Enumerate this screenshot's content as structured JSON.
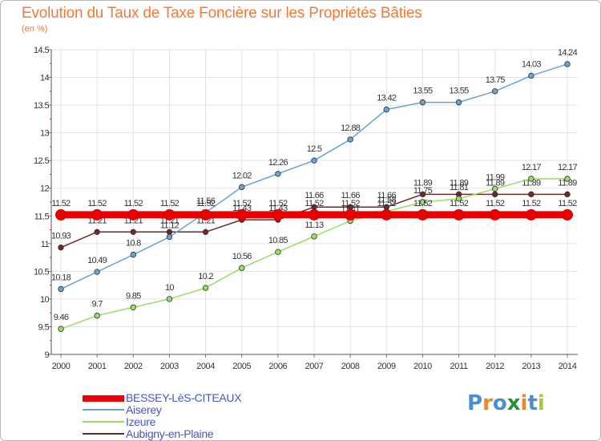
{
  "header": {
    "title": "Evolution du Taux de Taxe Foncière sur les Propriétés Bâties",
    "unit": "(en %)"
  },
  "logo": {
    "text": "Proxiti"
  },
  "chart_data": {
    "type": "line",
    "title": "Evolution du Taux de Taxe Foncière sur les Propriétés Bâties",
    "ylabel": "(en %)",
    "xlabel": "",
    "ylim": [
      9,
      14.5
    ],
    "yticks": [
      "9",
      "9.5",
      "10",
      "10.5",
      "11",
      "11.5",
      "12",
      "12.5",
      "13",
      "13.5",
      "14",
      "14.5"
    ],
    "grid": true,
    "categories": [
      "2000",
      "2001",
      "2002",
      "2003",
      "2004",
      "2005",
      "2006",
      "2007",
      "2008",
      "2009",
      "2010",
      "2011",
      "2012",
      "2013",
      "2014"
    ],
    "series": [
      {
        "name": "Aubigny-en-Plaine",
        "color": "#6e2a2a",
        "values": [
          10.93,
          11.21,
          11.21,
          11.21,
          11.21,
          11.43,
          11.43,
          11.66,
          11.66,
          11.66,
          11.89,
          11.89,
          11.89,
          11.89,
          11.89
        ],
        "labels": [
          "10.93",
          "11.21",
          "11.21",
          "11.21",
          "11.21",
          "11.43",
          "11.43",
          "11.66",
          "11.66",
          "11.66",
          "11.89",
          "11.89",
          "11.89",
          "11.89",
          "11.89"
        ]
      },
      {
        "name": "Izeure",
        "color": "#99dd66",
        "values": [
          9.46,
          9.7,
          9.85,
          10,
          10.2,
          10.56,
          10.85,
          11.13,
          11.41,
          11.58,
          11.75,
          11.81,
          11.99,
          12.17,
          12.17
        ],
        "labels": [
          "9.46",
          "9.7",
          "9.85",
          "10",
          "10.2",
          "10.56",
          "10.85",
          "11.13",
          "11.41",
          "11.58",
          "11.75",
          "11.81",
          "11.99",
          "12.17",
          "12.17"
        ]
      },
      {
        "name": "Aiserey",
        "color": "#6aa3d3",
        "values": [
          10.18,
          10.49,
          10.8,
          11.12,
          11.56,
          12.02,
          12.26,
          12.5,
          12.88,
          13.42,
          13.55,
          13.55,
          13.75,
          14.03,
          14.24
        ],
        "labels": [
          "10.18",
          "10.49",
          "10.8",
          "11.12",
          "11.56",
          "12.02",
          "12.26",
          "12.5",
          "12.88",
          "13.42",
          "13.55",
          "13.55",
          "13.75",
          "14.03",
          "14.24"
        ]
      },
      {
        "name": "BESSEY-LèS-CITEAUX",
        "color": "#ee0000",
        "values": [
          11.52,
          11.52,
          11.52,
          11.52,
          11.52,
          11.52,
          11.52,
          11.52,
          11.52,
          11.52,
          11.52,
          11.52,
          11.52,
          11.52,
          11.52
        ],
        "labels": [
          "11.52",
          "11.52",
          "11.52",
          "11.52",
          "11.52",
          "11.52",
          "11.52",
          "11.52",
          "11.52",
          "11.52",
          "11.52",
          "11.52",
          "11.52",
          "11.52",
          "11.52"
        ]
      }
    ],
    "legend": [
      "BESSEY-LèS-CITEAUX",
      "Aiserey",
      "Izeure",
      "Aubigny-en-Plaine"
    ],
    "legend_position": "bottom-left"
  }
}
